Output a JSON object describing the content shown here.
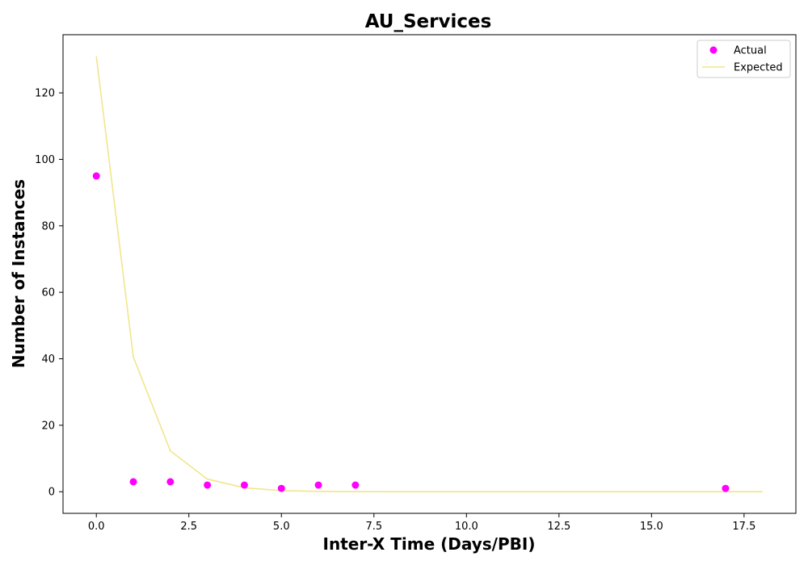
{
  "chart_data": {
    "type": "scatter",
    "title": "AU_Services",
    "xlabel": "Inter-X Time (Days/PBI)",
    "ylabel": "Number of Instances",
    "xlim": [
      -0.9,
      18.9
    ],
    "ylim": [
      -6.5,
      137.5
    ],
    "x_ticks": [
      0.0,
      2.5,
      5.0,
      7.5,
      10.0,
      12.5,
      15.0,
      17.5
    ],
    "x_tick_labels": [
      "0.0",
      "2.5",
      "5.0",
      "7.5",
      "10.0",
      "12.5",
      "15.0",
      "17.5"
    ],
    "y_ticks": [
      0,
      20,
      40,
      60,
      80,
      100,
      120
    ],
    "y_tick_labels": [
      "0",
      "20",
      "40",
      "60",
      "80",
      "100",
      "120"
    ],
    "grid": false,
    "legend_position": "top-right",
    "series": [
      {
        "name": "Actual",
        "kind": "scatter",
        "color": "#ff00ff",
        "x": [
          0,
          1,
          2,
          3,
          4,
          5,
          6,
          7,
          17
        ],
        "y": [
          95,
          3,
          3,
          2,
          2,
          1,
          2,
          2,
          1
        ]
      },
      {
        "name": "Expected",
        "kind": "line",
        "color": "#f0e68c",
        "x": [
          0,
          1,
          2,
          3,
          4,
          5,
          6,
          7,
          8,
          9,
          10,
          11,
          12,
          13,
          14,
          15,
          16,
          17,
          18
        ],
        "y": [
          131,
          40.5,
          12.3,
          3.8,
          1.2,
          0.35,
          0.1,
          0.03,
          0.01,
          0,
          0,
          0,
          0,
          0,
          0,
          0,
          0,
          0,
          0
        ]
      }
    ]
  }
}
